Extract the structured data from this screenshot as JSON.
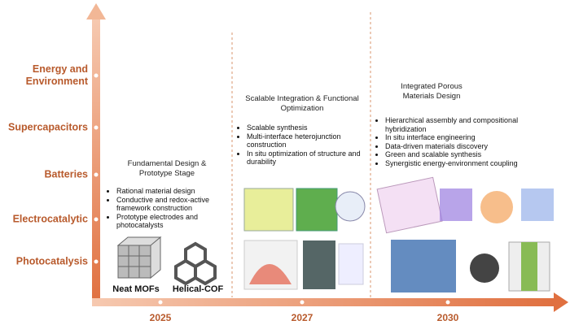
{
  "y_axis": [
    "Energy and Environment",
    "Supercapacitors",
    "Batteries",
    "Electrocatalytic",
    "Photocatalysis"
  ],
  "x_axis": [
    "2025",
    "2027",
    "2030"
  ],
  "stages": [
    {
      "title": "Fundamental Design & Prototype Stage",
      "bullets": [
        "Rational material design",
        "Conductive and redox-active framework construction",
        "Prototype electrodes and photocatalysts"
      ],
      "images": [
        "Neat MOFs",
        "Helical-COF"
      ]
    },
    {
      "title": "Scalable Integration & Functional Optimization",
      "bullets": [
        "Scalable synthesis",
        "Multi-interface heterojunction construction",
        "In situ optimization of structure and durability"
      ]
    },
    {
      "title": "Integrated Porous Materials Design",
      "bullets": [
        "Hierarchical assembly and compositional hybridization",
        "In situ interface engineering",
        "Data-driven materials discovery",
        "Green and scalable synthesis",
        "Synergistic energy-environment coupling"
      ]
    }
  ]
}
